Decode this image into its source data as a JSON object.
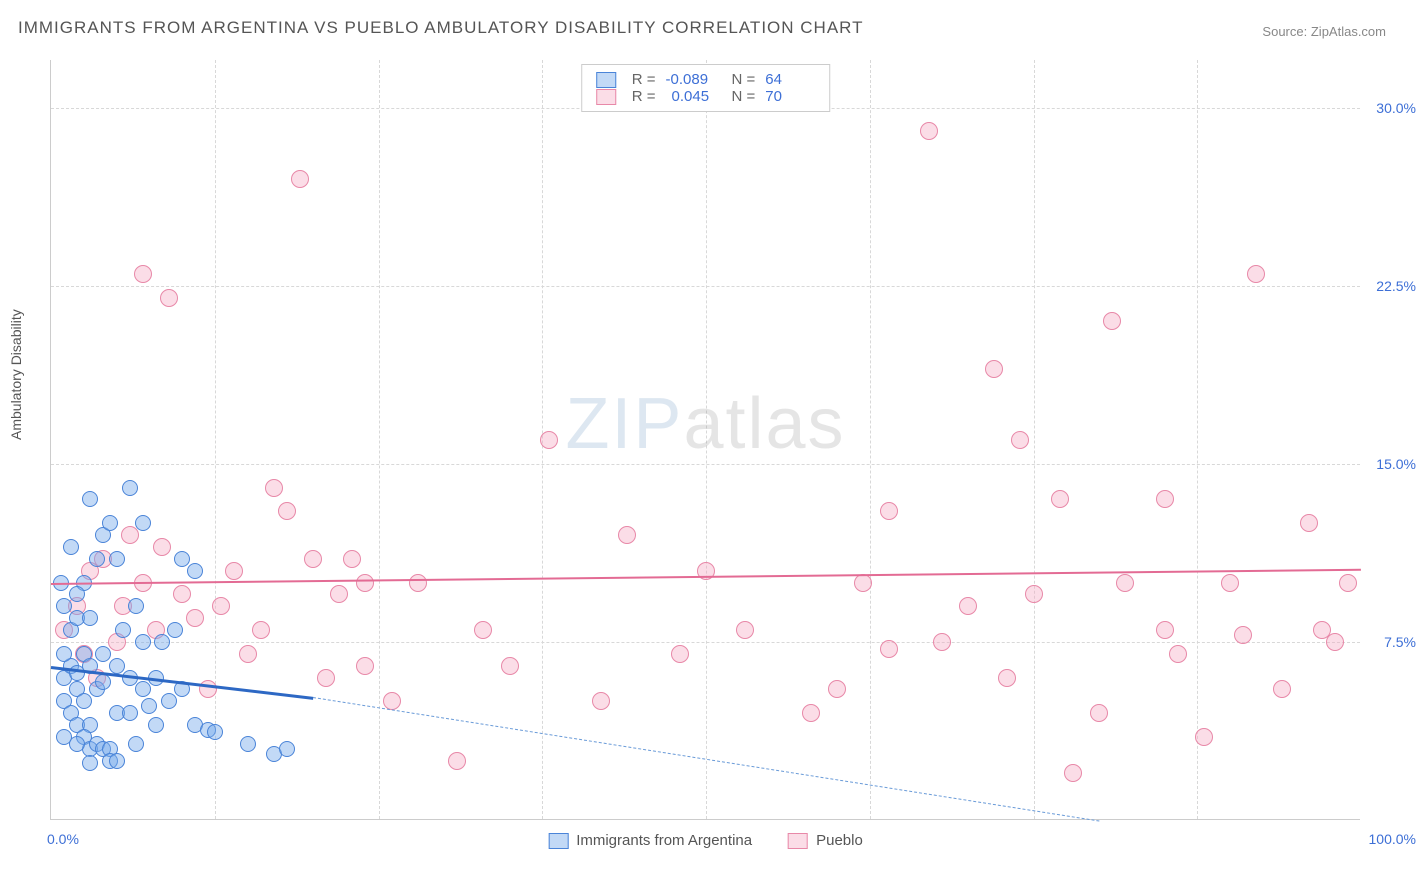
{
  "title": "IMMIGRANTS FROM ARGENTINA VS PUEBLO AMBULATORY DISABILITY CORRELATION CHART",
  "source_label": "Source:",
  "source_site": "ZipAtlas.com",
  "y_axis_label": "Ambulatory Disability",
  "watermark_a": "ZIP",
  "watermark_b": "atlas",
  "chart": {
    "type": "scatter",
    "background_color": "#ffffff",
    "grid_color": "#d8d8d8",
    "xlim": [
      0,
      100
    ],
    "ylim": [
      0,
      32
    ],
    "x_ticks": [
      0,
      100
    ],
    "x_tick_labels": [
      "0.0%",
      "100.0%"
    ],
    "x_grid": [
      12.5,
      25,
      37.5,
      50,
      62.5,
      75,
      87.5
    ],
    "y_ticks": [
      7.5,
      15.0,
      22.5,
      30.0
    ],
    "y_tick_labels": [
      "7.5%",
      "15.0%",
      "22.5%",
      "30.0%"
    ],
    "tick_color": "#3d6fd6",
    "axis_label_color": "#555555",
    "title_color": "#555555",
    "title_fontsize": 17,
    "tick_fontsize": 14,
    "series": {
      "blue": {
        "label": "Immigrants from Argentina",
        "fill": "rgba(120,170,235,0.45)",
        "stroke": "#4a84d8",
        "r_value": "-0.089",
        "n_value": "64",
        "marker_radius": 8,
        "marker_stroke_width": 1,
        "trend": {
          "x1": 0,
          "y1": 6.5,
          "x2": 20,
          "y2": 5.2,
          "color": "#2d68c4",
          "width": 3
        },
        "trend_ext": {
          "x1": 20,
          "y1": 5.2,
          "x2": 80,
          "y2": 0,
          "color": "#6a9bd8",
          "width": 1,
          "dashed": true
        },
        "points": [
          [
            1,
            6
          ],
          [
            1,
            5
          ],
          [
            1.5,
            6.5
          ],
          [
            1,
            7
          ],
          [
            2,
            6.2
          ],
          [
            2,
            5.5
          ],
          [
            2.5,
            7
          ],
          [
            2.5,
            5
          ],
          [
            3,
            6.5
          ],
          [
            1.5,
            4.5
          ],
          [
            2,
            4
          ],
          [
            3,
            4
          ],
          [
            3.5,
            5.5
          ],
          [
            2.5,
            3.5
          ],
          [
            3,
            3
          ],
          [
            3.5,
            3.2
          ],
          [
            4,
            3
          ],
          [
            4.5,
            3
          ],
          [
            4,
            5.8
          ],
          [
            5,
            4.5
          ],
          [
            5,
            6.5
          ],
          [
            4,
            7
          ],
          [
            1.5,
            8
          ],
          [
            2,
            8.5
          ],
          [
            3,
            8.5
          ],
          [
            2.5,
            10
          ],
          [
            3.5,
            11
          ],
          [
            4,
            12
          ],
          [
            4.5,
            12.5
          ],
          [
            5,
            11
          ],
          [
            6,
            14
          ],
          [
            7,
            12.5
          ],
          [
            3,
            13.5
          ],
          [
            1.5,
            11.5
          ],
          [
            0.8,
            10
          ],
          [
            1,
            9
          ],
          [
            2,
            9.5
          ],
          [
            5.5,
            8
          ],
          [
            6,
            6
          ],
          [
            7,
            5.5
          ],
          [
            7.5,
            4.8
          ],
          [
            8,
            6
          ],
          [
            9,
            5
          ],
          [
            10,
            5.5
          ],
          [
            11,
            4
          ],
          [
            12,
            3.8
          ],
          [
            12.5,
            3.7
          ],
          [
            15,
            3.2
          ],
          [
            17,
            2.8
          ],
          [
            18,
            3
          ],
          [
            6.5,
            3.2
          ],
          [
            4.5,
            2.5
          ],
          [
            3,
            2.4
          ],
          [
            2,
            3.2
          ],
          [
            1,
            3.5
          ],
          [
            5,
            2.5
          ],
          [
            6,
            4.5
          ],
          [
            8,
            4
          ],
          [
            8.5,
            7.5
          ],
          [
            9.5,
            8
          ],
          [
            10,
            11
          ],
          [
            11,
            10.5
          ],
          [
            6.5,
            9
          ],
          [
            7,
            7.5
          ]
        ]
      },
      "pink": {
        "label": "Pueblo",
        "fill": "rgba(245,170,195,0.40)",
        "stroke": "#e888a8",
        "r_value": "0.045",
        "n_value": "70",
        "marker_radius": 9,
        "marker_stroke_width": 1,
        "trend": {
          "x1": 0,
          "y1": 10,
          "x2": 100,
          "y2": 10.6,
          "color": "#e36b94",
          "width": 2
        },
        "points": [
          [
            1,
            8
          ],
          [
            2,
            9
          ],
          [
            2.5,
            7
          ],
          [
            3,
            10.5
          ],
          [
            3.5,
            6
          ],
          [
            4,
            11
          ],
          [
            5,
            7.5
          ],
          [
            5.5,
            9
          ],
          [
            6,
            12
          ],
          [
            7,
            10
          ],
          [
            8,
            8
          ],
          [
            8.5,
            11.5
          ],
          [
            9,
            22
          ],
          [
            7,
            23
          ],
          [
            10,
            9.5
          ],
          [
            11,
            8.5
          ],
          [
            12,
            5.5
          ],
          [
            13,
            9
          ],
          [
            14,
            10.5
          ],
          [
            15,
            7
          ],
          [
            16,
            8
          ],
          [
            17,
            14
          ],
          [
            18,
            13
          ],
          [
            19,
            27
          ],
          [
            20,
            11
          ],
          [
            21,
            6
          ],
          [
            22,
            9.5
          ],
          [
            23,
            11
          ],
          [
            24,
            6.5
          ],
          [
            24,
            10
          ],
          [
            26,
            5
          ],
          [
            28,
            10
          ],
          [
            31,
            2.5
          ],
          [
            33,
            8
          ],
          [
            35,
            6.5
          ],
          [
            38,
            16
          ],
          [
            42,
            5
          ],
          [
            44,
            12
          ],
          [
            48,
            7
          ],
          [
            50,
            10.5
          ],
          [
            53,
            8
          ],
          [
            58,
            4.5
          ],
          [
            60,
            5.5
          ],
          [
            62,
            10
          ],
          [
            64,
            7.2
          ],
          [
            64,
            13
          ],
          [
            67,
            29
          ],
          [
            68,
            7.5
          ],
          [
            70,
            9
          ],
          [
            72,
            19
          ],
          [
            73,
            6
          ],
          [
            74,
            16
          ],
          [
            75,
            9.5
          ],
          [
            77,
            13.5
          ],
          [
            78,
            2
          ],
          [
            80,
            4.5
          ],
          [
            81,
            21
          ],
          [
            82,
            10
          ],
          [
            85,
            8
          ],
          [
            85,
            13.5
          ],
          [
            86,
            7
          ],
          [
            88,
            3.5
          ],
          [
            90,
            10
          ],
          [
            91,
            7.8
          ],
          [
            92,
            23
          ],
          [
            94,
            5.5
          ],
          [
            96,
            12.5
          ],
          [
            97,
            8
          ],
          [
            98,
            7.5
          ],
          [
            99,
            10
          ]
        ]
      }
    },
    "legend_top": {
      "r_label": "R =",
      "n_label": "N ="
    },
    "swatch_border_blue": "#4a84d8",
    "swatch_fill_blue": "rgba(120,170,235,0.45)",
    "swatch_border_pink": "#e888a8",
    "swatch_fill_pink": "rgba(245,170,195,0.40)"
  }
}
